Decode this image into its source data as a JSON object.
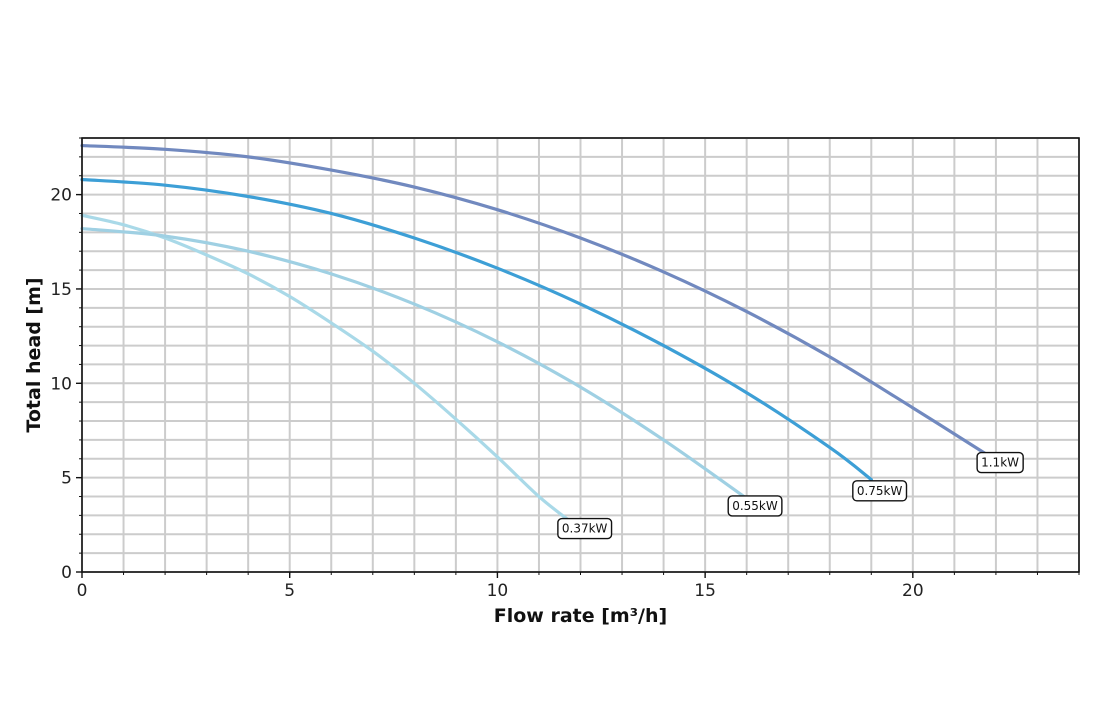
{
  "chart_data": {
    "type": "line",
    "title": "",
    "xlabel": "Flow rate [m³/h]",
    "ylabel": "Total head [m]",
    "xlim": [
      0,
      24
    ],
    "ylim": [
      0,
      23
    ],
    "xticks": [
      0,
      5,
      10,
      15,
      20
    ],
    "yticks": [
      0,
      5,
      10,
      15,
      20
    ],
    "x_minor_step": 1,
    "y_minor_step": 1,
    "grid": true,
    "series": [
      {
        "name": "0.37kW",
        "color": "#a9d9e8",
        "x": [
          0,
          1,
          2,
          3,
          4,
          5,
          6,
          7,
          8,
          9,
          10,
          11,
          11.8
        ],
        "y": [
          18.9,
          18.4,
          17.7,
          16.8,
          15.8,
          14.6,
          13.2,
          11.7,
          10.0,
          8.1,
          6.1,
          4.0,
          2.6
        ]
      },
      {
        "name": "0.55kW",
        "color": "#9fd0e3",
        "x": [
          0,
          2,
          4,
          6,
          8,
          10,
          12,
          14,
          16
        ],
        "y": [
          18.2,
          17.8,
          17.0,
          15.8,
          14.2,
          12.2,
          9.8,
          7.0,
          3.9
        ]
      },
      {
        "name": "0.75kW",
        "color": "#3d9fd6",
        "x": [
          0,
          2,
          4,
          6,
          8,
          10,
          12,
          14,
          16,
          18,
          19
        ],
        "y": [
          20.8,
          20.5,
          19.9,
          19.0,
          17.7,
          16.1,
          14.2,
          12.0,
          9.5,
          6.6,
          4.9
        ]
      },
      {
        "name": "1.1kW",
        "color": "#7189bf",
        "x": [
          0,
          2,
          4,
          6,
          8,
          10,
          12,
          14,
          16,
          18,
          20,
          21.8
        ],
        "y": [
          22.6,
          22.4,
          22.0,
          21.3,
          20.4,
          19.2,
          17.7,
          15.9,
          13.8,
          11.4,
          8.7,
          6.2
        ]
      }
    ],
    "annotations": [
      {
        "text": "0.37kW",
        "x": 12.1,
        "y": 2.3
      },
      {
        "text": "0.55kW",
        "x": 16.2,
        "y": 3.5
      },
      {
        "text": "0.75kW",
        "x": 19.2,
        "y": 4.3
      },
      {
        "text": "1.1kW",
        "x": 22.1,
        "y": 5.8
      }
    ]
  }
}
